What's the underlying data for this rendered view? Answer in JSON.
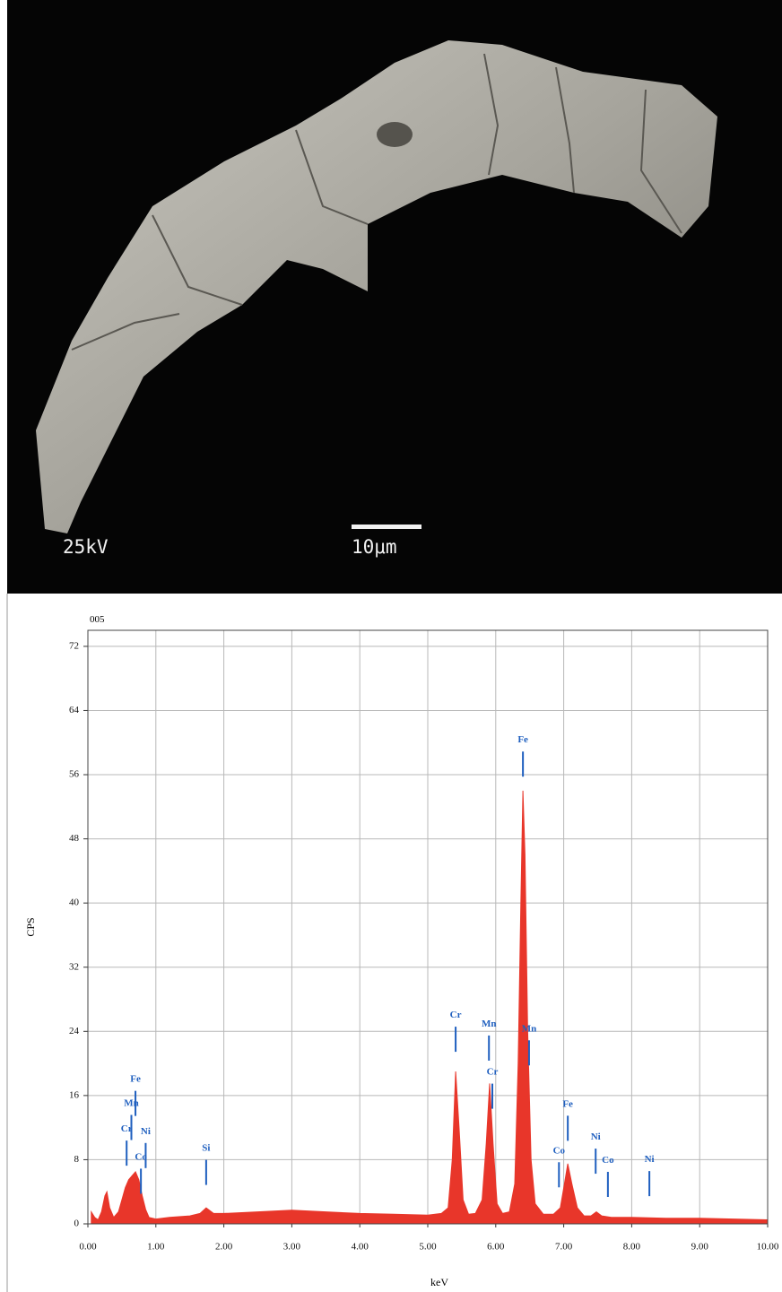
{
  "image": {
    "voltage_label": "25kV",
    "scale_label": "10μm"
  },
  "chart_data": {
    "type": "area",
    "title": "005",
    "x_label": "keV",
    "y_label": "CPS",
    "color": "#e8362a",
    "grid": true,
    "xlim": [
      0,
      10
    ],
    "ylim": [
      0,
      74
    ],
    "xticks": [
      {
        "value": 0,
        "label": "0.00"
      },
      {
        "value": 1,
        "label": "1.00"
      },
      {
        "value": 2,
        "label": "2.00"
      },
      {
        "value": 3,
        "label": "3.00"
      },
      {
        "value": 4,
        "label": "4.00"
      },
      {
        "value": 5,
        "label": "5.00"
      },
      {
        "value": 6,
        "label": "6.00"
      },
      {
        "value": 7,
        "label": "7.00"
      },
      {
        "value": 8,
        "label": "8.00"
      },
      {
        "value": 9,
        "label": "9.00"
      },
      {
        "value": 10,
        "label": "10.00"
      }
    ],
    "yticks": [
      0,
      8,
      16,
      24,
      32,
      40,
      48,
      56,
      64,
      72
    ],
    "x": [
      0.05,
      0.1,
      0.15,
      0.2,
      0.25,
      0.28,
      0.32,
      0.38,
      0.45,
      0.5,
      0.55,
      0.6,
      0.65,
      0.7,
      0.75,
      0.8,
      0.85,
      0.9,
      1.0,
      1.2,
      1.5,
      1.65,
      1.74,
      1.85,
      2.0,
      2.5,
      3.0,
      3.5,
      4.0,
      4.5,
      5.0,
      5.2,
      5.3,
      5.36,
      5.41,
      5.46,
      5.52,
      5.6,
      5.7,
      5.8,
      5.86,
      5.91,
      5.96,
      6.02,
      6.1,
      6.2,
      6.28,
      6.33,
      6.37,
      6.4,
      6.43,
      6.47,
      6.52,
      6.58,
      6.7,
      6.85,
      6.95,
      7.01,
      7.06,
      7.12,
      7.2,
      7.3,
      7.4,
      7.48,
      7.56,
      7.7,
      8.0,
      8.5,
      9.0,
      9.5,
      10.0
    ],
    "values": [
      1.5,
      0.8,
      0.5,
      1.5,
      3.5,
      4,
      2,
      0.8,
      1.5,
      3,
      4.5,
      5.5,
      6,
      6.5,
      5.5,
      3.5,
      1.8,
      0.8,
      0.6,
      0.8,
      1,
      1.3,
      2,
      1.3,
      1.3,
      1.5,
      1.7,
      1.5,
      1.3,
      1.2,
      1.1,
      1.3,
      2,
      8,
      19,
      12,
      3,
      1.2,
      1.3,
      3,
      10,
      17.5,
      10,
      2.5,
      1.3,
      1.5,
      5,
      20,
      40,
      54,
      46,
      24,
      8,
      2.5,
      1.2,
      1.2,
      2,
      5,
      7.5,
      5,
      2,
      1,
      1,
      1.5,
      1,
      0.8,
      0.8,
      0.7,
      0.7,
      0.6,
      0.5
    ],
    "annotations": [
      {
        "text": "Cr",
        "x": 0.57,
        "y": 11.5
      },
      {
        "text": "Mn",
        "x": 0.64,
        "y": 14.7
      },
      {
        "text": "Fe",
        "x": 0.7,
        "y": 17.7
      },
      {
        "text": "Co",
        "x": 0.78,
        "y": 8
      },
      {
        "text": "Ni",
        "x": 0.85,
        "y": 11.2
      },
      {
        "text": "Si",
        "x": 1.74,
        "y": 9.1
      },
      {
        "text": "Cr",
        "x": 5.41,
        "y": 25.7
      },
      {
        "text": "Mn",
        "x": 5.9,
        "y": 24.6
      },
      {
        "text": "Cr",
        "x": 5.95,
        "y": 18.6
      },
      {
        "text": "Fe",
        "x": 6.4,
        "y": 60
      },
      {
        "text": "Mn",
        "x": 6.49,
        "y": 24
      },
      {
        "text": "Co",
        "x": 6.93,
        "y": 8.8
      },
      {
        "text": "Fe",
        "x": 7.06,
        "y": 14.6
      },
      {
        "text": "Ni",
        "x": 7.47,
        "y": 10.5
      },
      {
        "text": "Co",
        "x": 7.65,
        "y": 7.6
      },
      {
        "text": "Ni",
        "x": 8.26,
        "y": 7.7
      }
    ]
  }
}
